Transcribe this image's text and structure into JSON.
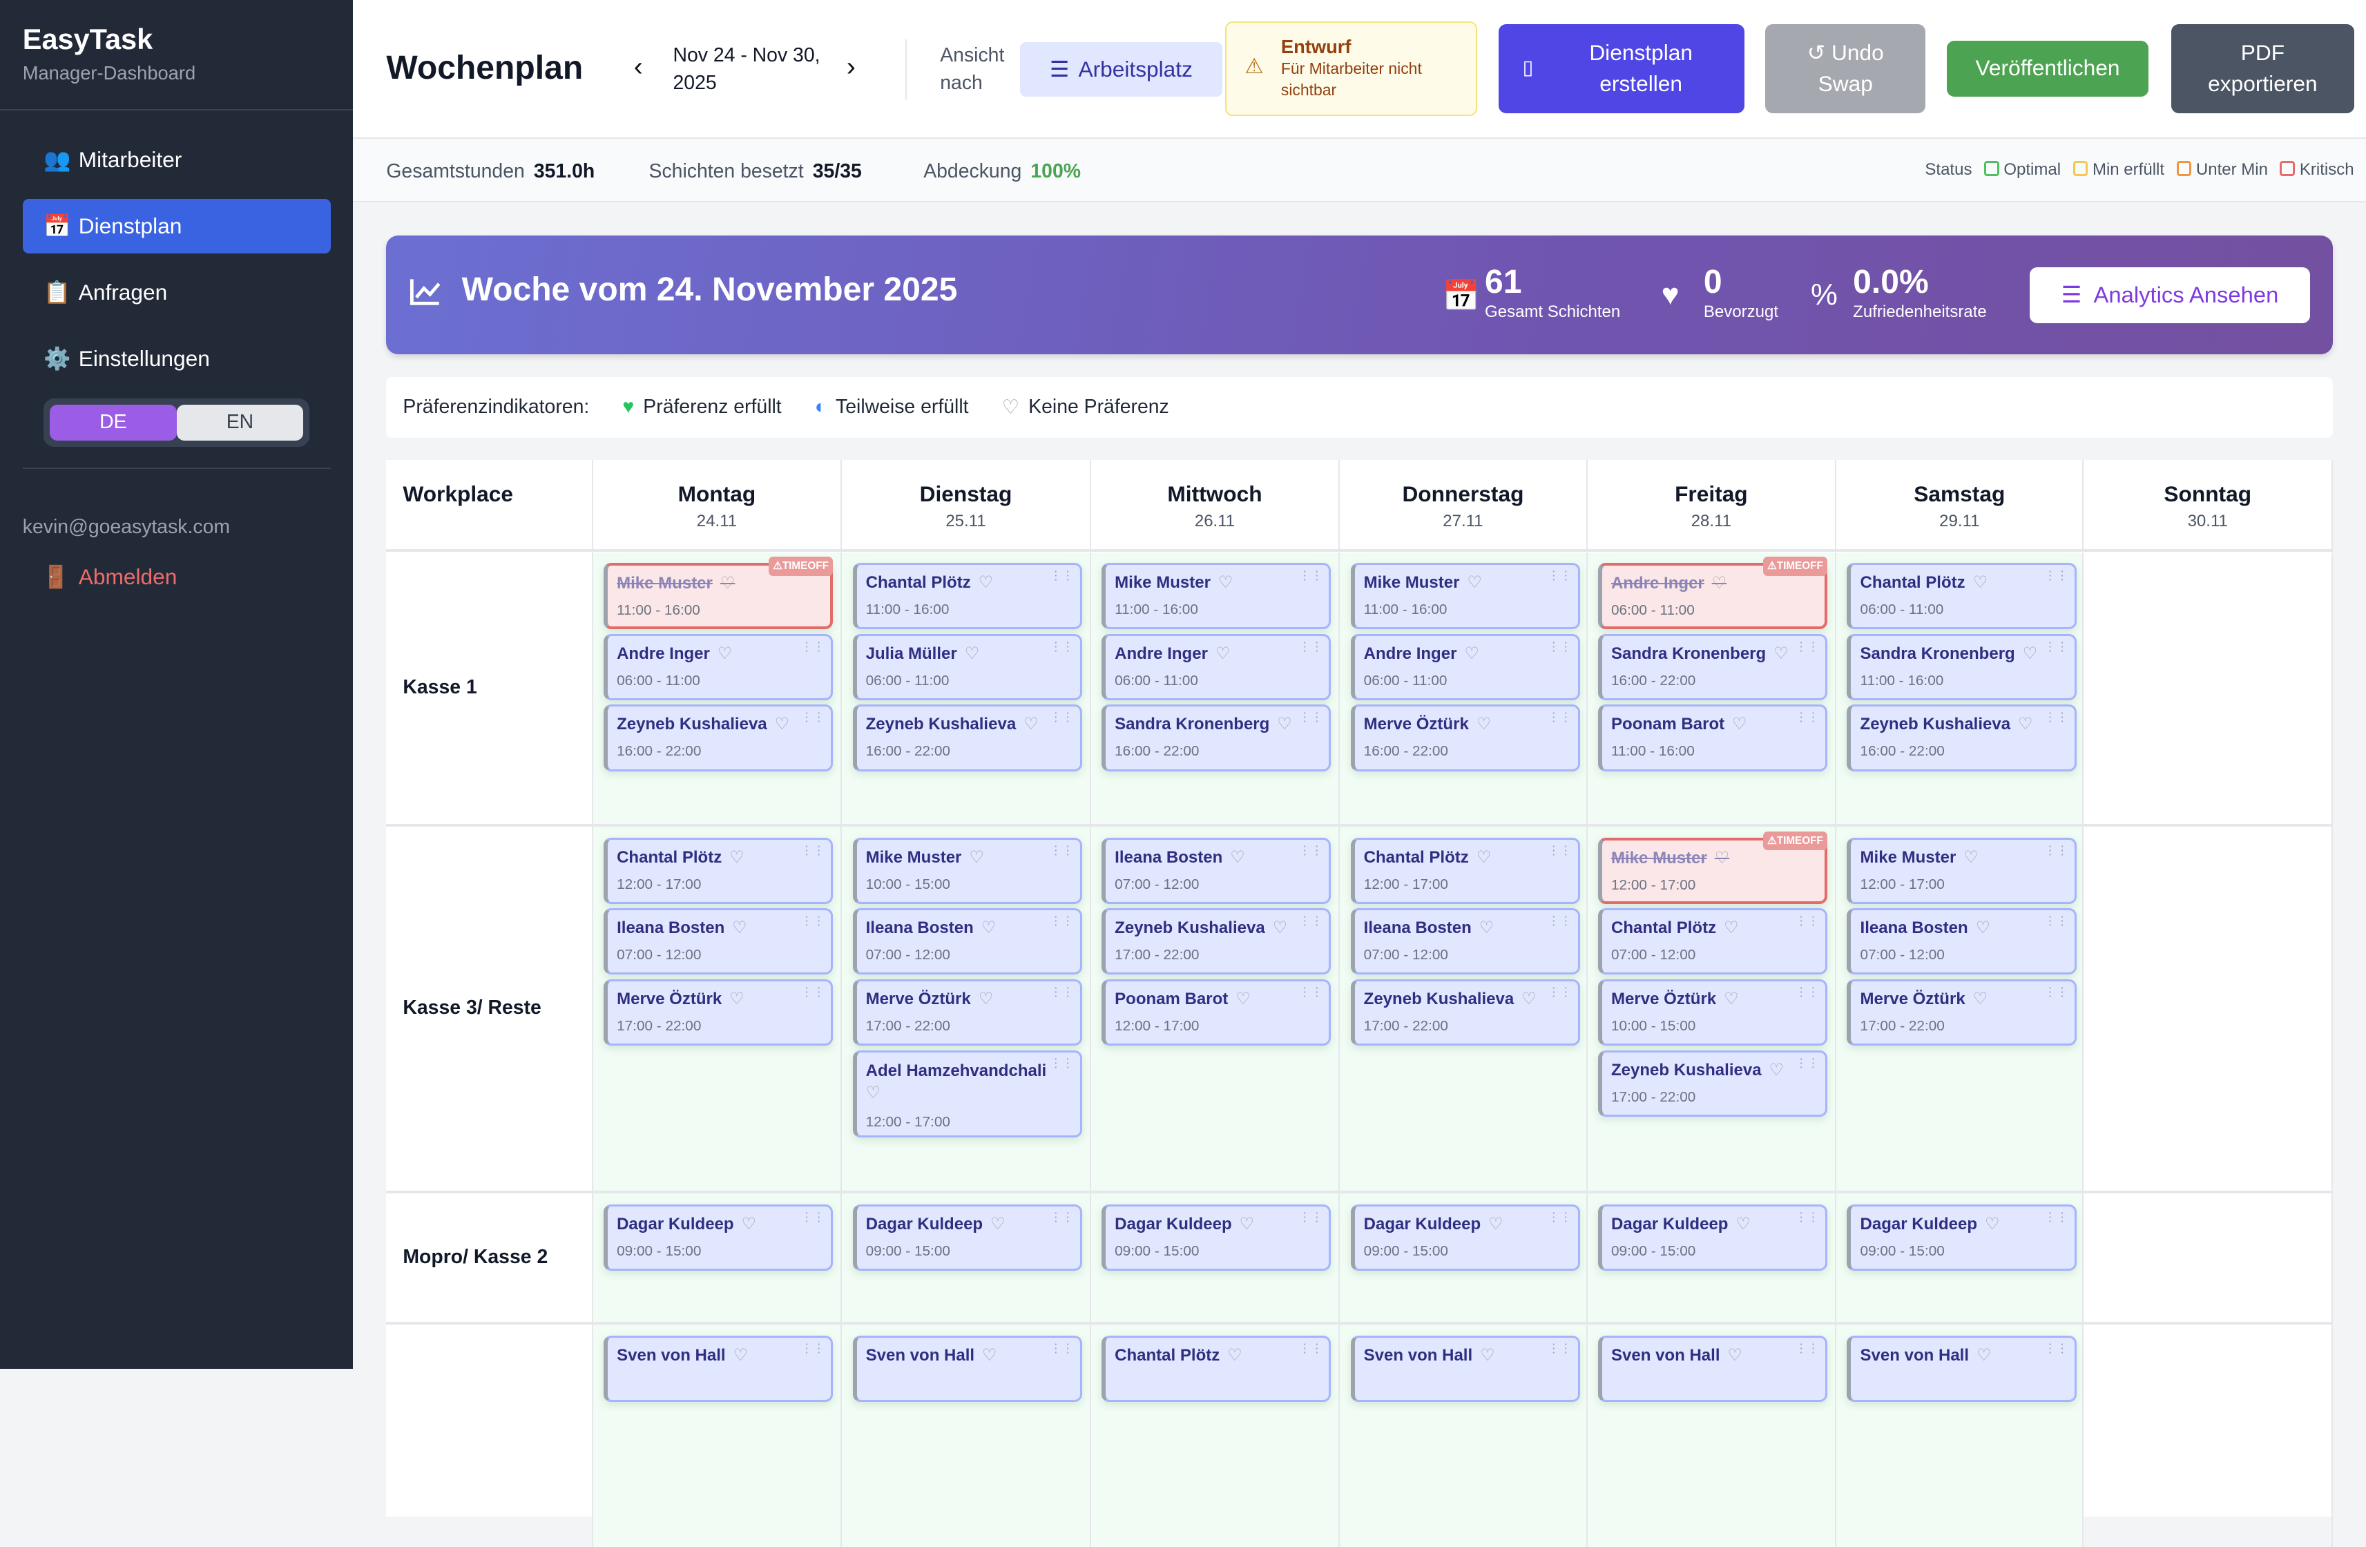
{
  "sidebar": {
    "brand": "EasyTask",
    "subtitle": "Manager-Dashboard",
    "items": [
      {
        "icon": "👥",
        "label": "Mitarbeiter"
      },
      {
        "icon": "📅",
        "label": "Dienstplan",
        "active": true
      },
      {
        "icon": "📋",
        "label": "Anfragen"
      },
      {
        "icon": "⚙️",
        "label": "Einstellungen"
      }
    ],
    "lang": {
      "de": "DE",
      "en": "EN",
      "active": "DE"
    },
    "email": "kevin@goeasytask.com",
    "logout_icon": "🚪",
    "logout": "Abmelden"
  },
  "header": {
    "title": "Wochenplan",
    "range": "Nov 24 - Nov 30, 2025",
    "prev": "‹",
    "next": "›",
    "view_label": "Ansicht nach",
    "view_value": "Arbeitsplatz",
    "draft_title": "Entwurf",
    "draft_text": "Für Mitarbeiter nicht sichtbar",
    "buttons": {
      "create": "Dienstplan erstellen",
      "undo": "↺ Undo Swap",
      "publish": "Veröffentlichen",
      "pdf": "PDF exportieren"
    },
    "colors": {
      "create": "#4f46e5",
      "undo": "#a5a8ae",
      "publish": "#4ca352",
      "pdf": "#4b5563"
    }
  },
  "stats": {
    "hours_label": "Gesamtstunden",
    "hours": "351.0h",
    "shifts_label": "Schichten besetzt",
    "shifts": "35/35",
    "coverage_label": "Abdeckung",
    "coverage": "100%",
    "status_label": "Status",
    "legend": [
      {
        "label": "Optimal",
        "color": "#4fbf5f"
      },
      {
        "label": "Min erfüllt",
        "color": "#f2c94c"
      },
      {
        "label": "Unter Min",
        "color": "#f0953f"
      },
      {
        "label": "Kritisch",
        "color": "#e56b6b"
      }
    ]
  },
  "banner": {
    "title": "Woche vom 24. November 2025",
    "kpis": [
      {
        "value": "61",
        "label": "Gesamt Schichten",
        "icon": "calendar-check"
      },
      {
        "value": "0",
        "label": "Bevorzugt",
        "icon": "heart"
      },
      {
        "value": "0.0%",
        "label": "Zufriedenheitsrate",
        "icon": "percent"
      }
    ],
    "analytics": "Analytics Ansehen"
  },
  "prefs": {
    "label": "Präferenzindikatoren:",
    "fulfilled": "Präferenz erfüllt",
    "partial": "Teilweise erfüllt",
    "none": "Keine Präferenz"
  },
  "grid": {
    "workplace_header": "Workplace",
    "timeoff_badge": "TIMEOFF",
    "days": [
      {
        "name": "Montag",
        "date": "24.11"
      },
      {
        "name": "Dienstag",
        "date": "25.11"
      },
      {
        "name": "Mittwoch",
        "date": "26.11"
      },
      {
        "name": "Donnerstag",
        "date": "27.11"
      },
      {
        "name": "Freitag",
        "date": "28.11"
      },
      {
        "name": "Samstag",
        "date": "29.11"
      },
      {
        "name": "Sonntag",
        "date": "30.11"
      }
    ],
    "rows": [
      {
        "label": "Kasse 1",
        "cells": [
          [
            {
              "name": "Mike Muster",
              "time": "11:00 - 16:00",
              "timeoff": true
            },
            {
              "name": "Andre Inger",
              "time": "06:00 - 11:00"
            },
            {
              "name": "Zeyneb Kushalieva",
              "time": "16:00 - 22:00"
            }
          ],
          [
            {
              "name": "Chantal Plötz",
              "time": "11:00 - 16:00"
            },
            {
              "name": "Julia Müller",
              "time": "06:00 - 11:00"
            },
            {
              "name": "Zeyneb Kushalieva",
              "time": "16:00 - 22:00"
            }
          ],
          [
            {
              "name": "Mike Muster",
              "time": "11:00 - 16:00"
            },
            {
              "name": "Andre Inger",
              "time": "06:00 - 11:00"
            },
            {
              "name": "Sandra Kronenberg",
              "time": "16:00 - 22:00"
            }
          ],
          [
            {
              "name": "Mike Muster",
              "time": "11:00 - 16:00"
            },
            {
              "name": "Andre Inger",
              "time": "06:00 - 11:00"
            },
            {
              "name": "Merve Öztürk",
              "time": "16:00 - 22:00"
            }
          ],
          [
            {
              "name": "Andre Inger",
              "time": "06:00 - 11:00",
              "timeoff": true
            },
            {
              "name": "Sandra Kronenberg",
              "time": "16:00 - 22:00"
            },
            {
              "name": "Poonam Barot",
              "time": "11:00 - 16:00"
            }
          ],
          [
            {
              "name": "Chantal Plötz",
              "time": "06:00 - 11:00"
            },
            {
              "name": "Sandra Kronenberg",
              "time": "11:00 - 16:00"
            },
            {
              "name": "Zeyneb Kushalieva",
              "time": "16:00 - 22:00"
            }
          ],
          []
        ]
      },
      {
        "label": "Kasse 3/ Reste",
        "cells": [
          [
            {
              "name": "Chantal Plötz",
              "time": "12:00 - 17:00"
            },
            {
              "name": "Ileana Bosten",
              "time": "07:00 - 12:00"
            },
            {
              "name": "Merve Öztürk",
              "time": "17:00 - 22:00"
            }
          ],
          [
            {
              "name": "Mike Muster",
              "time": "10:00 - 15:00"
            },
            {
              "name": "Ileana Bosten",
              "time": "07:00 - 12:00"
            },
            {
              "name": "Merve Öztürk",
              "time": "17:00 - 22:00"
            },
            {
              "name": "Adel Hamzehvandchali",
              "time": "12:00 - 17:00"
            }
          ],
          [
            {
              "name": "Ileana Bosten",
              "time": "07:00 - 12:00"
            },
            {
              "name": "Zeyneb Kushalieva",
              "time": "17:00 - 22:00"
            },
            {
              "name": "Poonam Barot",
              "time": "12:00 - 17:00"
            }
          ],
          [
            {
              "name": "Chantal Plötz",
              "time": "12:00 - 17:00"
            },
            {
              "name": "Ileana Bosten",
              "time": "07:00 - 12:00"
            },
            {
              "name": "Zeyneb Kushalieva",
              "time": "17:00 - 22:00"
            }
          ],
          [
            {
              "name": "Mike Muster",
              "time": "12:00 - 17:00",
              "timeoff": true
            },
            {
              "name": "Chantal Plötz",
              "time": "07:00 - 12:00"
            },
            {
              "name": "Merve Öztürk",
              "time": "10:00 - 15:00"
            },
            {
              "name": "Zeyneb Kushalieva",
              "time": "17:00 - 22:00"
            }
          ],
          [
            {
              "name": "Mike Muster",
              "time": "12:00 - 17:00"
            },
            {
              "name": "Ileana Bosten",
              "time": "07:00 - 12:00"
            },
            {
              "name": "Merve Öztürk",
              "time": "17:00 - 22:00"
            }
          ],
          []
        ]
      },
      {
        "label": "Mopro/ Kasse 2",
        "cells": [
          [
            {
              "name": "Dagar Kuldeep",
              "time": "09:00 - 15:00"
            }
          ],
          [
            {
              "name": "Dagar Kuldeep",
              "time": "09:00 - 15:00"
            }
          ],
          [
            {
              "name": "Dagar Kuldeep",
              "time": "09:00 - 15:00"
            }
          ],
          [
            {
              "name": "Dagar Kuldeep",
              "time": "09:00 - 15:00"
            }
          ],
          [
            {
              "name": "Dagar Kuldeep",
              "time": "09:00 - 15:00"
            }
          ],
          [
            {
              "name": "Dagar Kuldeep",
              "time": "09:00 - 15:00"
            }
          ],
          []
        ]
      },
      {
        "label": "",
        "cells": [
          [
            {
              "name": "Sven von Hall",
              "time": ""
            }
          ],
          [
            {
              "name": "Sven von Hall",
              "time": ""
            }
          ],
          [
            {
              "name": "Chantal Plötz",
              "time": ""
            }
          ],
          [
            {
              "name": "Sven von Hall",
              "time": ""
            }
          ],
          [
            {
              "name": "Sven von Hall",
              "time": ""
            }
          ],
          [
            {
              "name": "Sven von Hall",
              "time": ""
            }
          ],
          []
        ]
      }
    ]
  }
}
